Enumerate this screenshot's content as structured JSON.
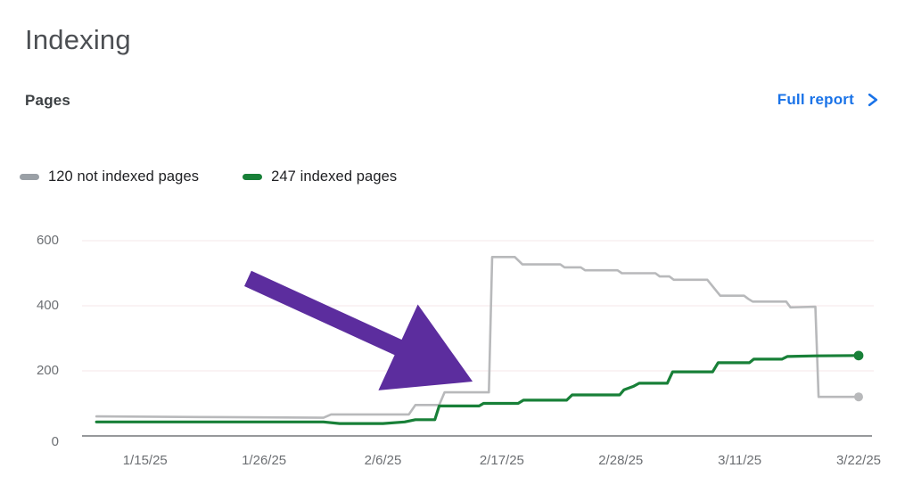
{
  "page": {
    "title": "Indexing"
  },
  "section": {
    "title": "Pages",
    "full_report_label": "Full report"
  },
  "colors": {
    "link_blue": "#1a73e8",
    "not_indexed_gray": "#b8b9bb",
    "indexed_green": "#188038",
    "arrow_purple": "#5c2d9e",
    "gridline": "#f8eff1",
    "baseline": "#96989b"
  },
  "chart_data": {
    "type": "line",
    "title": "Pages indexing over time",
    "xlabel": "",
    "ylabel": "",
    "grid": true,
    "legend_position": "top-left",
    "x_axis": {
      "unit": "days (offset from 1/9/25)",
      "ticks": [
        {
          "day": 6,
          "label": "1/15/25"
        },
        {
          "day": 17,
          "label": "1/26/25"
        },
        {
          "day": 28,
          "label": "2/6/25"
        },
        {
          "day": 39,
          "label": "2/17/25"
        },
        {
          "day": 50,
          "label": "2/28/25"
        },
        {
          "day": 61,
          "label": "3/11/25"
        },
        {
          "day": 72,
          "label": "3/22/25"
        }
      ]
    },
    "y_axis": {
      "range": [
        0,
        620
      ],
      "ticks": [
        {
          "value": 0,
          "label": "0"
        },
        {
          "value": 200,
          "label": "200"
        },
        {
          "value": 400,
          "label": "400"
        },
        {
          "value": 600,
          "label": "600"
        }
      ]
    },
    "series": [
      {
        "name": "120 not indexed pages",
        "end_value": 120,
        "line_color": "#b8b9bb",
        "legend_color": "#9aa0a6",
        "end_dot": true,
        "points": [
          [
            1.5,
            60
          ],
          [
            11,
            58
          ],
          [
            22.5,
            56
          ],
          [
            23.2,
            66
          ],
          [
            30.4,
            66
          ],
          [
            31,
            95
          ],
          [
            33.2,
            95
          ],
          [
            33.7,
            134
          ],
          [
            37.8,
            134
          ],
          [
            38.1,
            550
          ],
          [
            40.2,
            550
          ],
          [
            40.9,
            527
          ],
          [
            44.4,
            527
          ],
          [
            44.8,
            518
          ],
          [
            46.3,
            518
          ],
          [
            46.7,
            509
          ],
          [
            49.7,
            509
          ],
          [
            50.1,
            500
          ],
          [
            53.2,
            500
          ],
          [
            53.6,
            490
          ],
          [
            54.5,
            490
          ],
          [
            54.9,
            480
          ],
          [
            58,
            480
          ],
          [
            59.2,
            431
          ],
          [
            61.4,
            431
          ],
          [
            61.8,
            421
          ],
          [
            62.2,
            413
          ],
          [
            65.3,
            413
          ],
          [
            65.7,
            395
          ],
          [
            68,
            397
          ],
          [
            68.3,
            120
          ],
          [
            72,
            120
          ]
        ]
      },
      {
        "name": "247 indexed pages",
        "end_value": 247,
        "line_color": "#188038",
        "legend_color": "#188038",
        "end_dot": true,
        "points": [
          [
            1.5,
            43
          ],
          [
            22.5,
            43
          ],
          [
            24,
            38
          ],
          [
            28,
            38
          ],
          [
            30,
            43
          ],
          [
            31,
            50
          ],
          [
            32.8,
            50
          ],
          [
            33.2,
            92
          ],
          [
            36.9,
            92
          ],
          [
            37.3,
            100
          ],
          [
            40.5,
            100
          ],
          [
            41,
            110
          ],
          [
            45,
            110
          ],
          [
            45.5,
            126
          ],
          [
            49.9,
            126
          ],
          [
            50.3,
            142
          ],
          [
            51.2,
            153
          ],
          [
            51.7,
            162
          ],
          [
            54.3,
            162
          ],
          [
            54.8,
            197
          ],
          [
            58.5,
            197
          ],
          [
            59,
            225
          ],
          [
            61.9,
            225
          ],
          [
            62.3,
            236
          ],
          [
            64.9,
            236
          ],
          [
            65.4,
            244
          ],
          [
            68,
            246
          ],
          [
            72,
            247
          ]
        ]
      }
    ],
    "annotation": {
      "shape": "arrow",
      "color": "#5c2d9e",
      "tail_day_value": [
        15.5,
        484
      ],
      "tip_day_value": [
        36.3,
        167
      ]
    }
  }
}
